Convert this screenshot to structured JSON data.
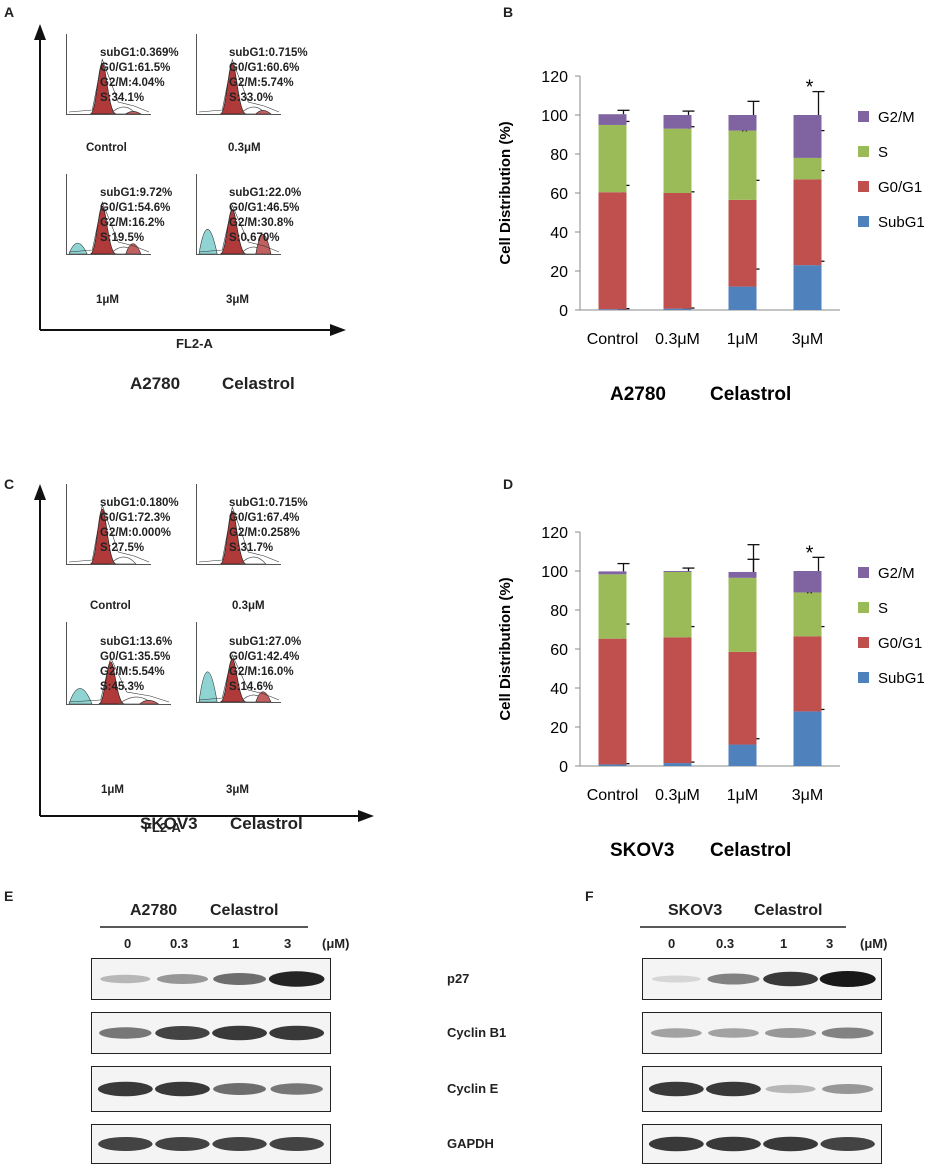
{
  "panels": {
    "a": "A",
    "b": "B",
    "c": "C",
    "d": "D",
    "e": "E",
    "f": "F"
  },
  "flow_a": {
    "xlabel": "FL2-A",
    "caption_cell": "A2780",
    "caption_drug": "Celastrol",
    "hists": [
      {
        "label": "Control",
        "lines": [
          "subG1:0.369%",
          "G0/G1:61.5%",
          "G2/M:4.04%",
          "S:34.1%"
        ]
      },
      {
        "label": "0.3μM",
        "lines": [
          "subG1:0.715%",
          "G0/G1:60.6%",
          "G2/M:5.74%",
          "S:33.0%"
        ]
      },
      {
        "label": "1μM",
        "lines": [
          "subG1:9.72%",
          "G0/G1:54.6%",
          "G2/M:16.2%",
          "S:19.5%"
        ]
      },
      {
        "label": "3μM",
        "lines": [
          "subG1:22.0%",
          "G0/G1:46.5%",
          "G2/M:30.8%",
          "S:0.670%"
        ]
      }
    ]
  },
  "flow_c": {
    "xlabel": "FL2-A",
    "caption_cell": "SKOV3",
    "caption_drug": "Celastrol",
    "hists": [
      {
        "label": "Control",
        "lines": [
          "subG1:0.180%",
          "G0/G1:72.3%",
          "G2/M:0.000%",
          "S:27.5%"
        ]
      },
      {
        "label": "0.3μM",
        "lines": [
          "subG1:0.715%",
          "G0/G1:67.4%",
          "G2/M:0.258%",
          "S:31.7%"
        ]
      },
      {
        "label": "1μM",
        "lines": [
          "subG1:13.6%",
          "G0/G1:35.5%",
          "G2/M:5.54%",
          "S:45.3%"
        ]
      },
      {
        "label": "3μM",
        "lines": [
          "subG1:27.0%",
          "G0/G1:42.4%",
          "G2/M:16.0%",
          "S:14.6%"
        ]
      }
    ]
  },
  "chart_data": [
    {
      "type": "bar",
      "stacked": true,
      "title": "",
      "caption_cell": "A2780",
      "caption_drug": "Celastrol",
      "ylabel": "Cell Distribution (%)",
      "ylim": [
        0,
        120
      ],
      "yticks": [
        0,
        20,
        40,
        60,
        80,
        100,
        120
      ],
      "categories": [
        "Control",
        "0.3μM",
        "1μM",
        "3μM"
      ],
      "series": [
        {
          "name": "SubG1",
          "color": "#4f81bd",
          "values": [
            0.4,
            0.7,
            12,
            23
          ],
          "err": [
            0.3,
            0.3,
            9,
            2
          ],
          "sig": [
            "",
            "",
            "*",
            "*"
          ]
        },
        {
          "name": "G0/G1",
          "color": "#c0504d",
          "values": [
            60,
            59.3,
            44.5,
            44
          ],
          "err": [
            3.5,
            0.6,
            10,
            4.5
          ],
          "sig": [
            "",
            "",
            "*",
            ""
          ]
        },
        {
          "name": "S",
          "color": "#9bbb59",
          "values": [
            34.5,
            33,
            35.5,
            11
          ],
          "err": [
            1.8,
            1,
            0,
            14
          ],
          "sig": [
            "",
            "",
            "*",
            "**"
          ]
        },
        {
          "name": "G2/M",
          "color": "#8064a2",
          "values": [
            5.5,
            7,
            8,
            22
          ],
          "err": [
            2,
            2,
            7,
            12
          ],
          "sig": [
            "",
            "",
            "",
            "*"
          ]
        }
      ],
      "legend": [
        "G2/M",
        "S",
        "G0/G1",
        "SubG1"
      ],
      "legend_position": "right"
    },
    {
      "type": "bar",
      "stacked": true,
      "title": "",
      "caption_cell": "SKOV3",
      "caption_drug": "Celastrol",
      "ylabel": "Cell Distribution (%)",
      "ylim": [
        0,
        120
      ],
      "yticks": [
        0,
        20,
        40,
        60,
        80,
        100,
        120
      ],
      "categories": [
        "Control",
        "0.3μM",
        "1μM",
        "3μM"
      ],
      "series": [
        {
          "name": "SubG1",
          "color": "#4f81bd",
          "values": [
            0.8,
            1.5,
            11,
            28
          ],
          "err": [
            0.4,
            0.5,
            3,
            1
          ],
          "sig": [
            "",
            "",
            "*",
            "**"
          ]
        },
        {
          "name": "G0/G1",
          "color": "#c0504d",
          "values": [
            64.5,
            64.5,
            47.5,
            38.5
          ],
          "err": [
            7.5,
            5.5,
            0,
            5
          ],
          "sig": [
            "",
            "",
            "",
            ""
          ]
        },
        {
          "name": "S",
          "color": "#9bbb59",
          "values": [
            33,
            33.5,
            38,
            22.5
          ],
          "err": [
            0,
            0,
            17,
            0
          ],
          "sig": [
            "",
            "",
            "",
            "*"
          ]
        },
        {
          "name": "G2/M",
          "color": "#8064a2",
          "values": [
            1.5,
            0.5,
            3,
            11
          ],
          "err": [
            4,
            1.5,
            6.5,
            7
          ],
          "sig": [
            "",
            "",
            "",
            "*"
          ]
        }
      ],
      "legend": [
        "G2/M",
        "S",
        "G0/G1",
        "SubG1"
      ],
      "legend_position": "right"
    }
  ],
  "western": {
    "e_header_cell": "A2780",
    "e_header_drug": "Celastrol",
    "f_header_cell": "SKOV3",
    "f_header_drug": "Celastrol",
    "doses": [
      "0",
      "0.3",
      "1",
      "3"
    ],
    "unit": "(μM)",
    "rows": [
      "p27",
      "Cyclin B1",
      "Cyclin E",
      "GAPDH"
    ],
    "e_intensity": [
      [
        0.25,
        0.4,
        0.6,
        0.95
      ],
      [
        0.55,
        0.8,
        0.85,
        0.85
      ],
      [
        0.85,
        0.85,
        0.6,
        0.55
      ],
      [
        0.8,
        0.8,
        0.8,
        0.8
      ]
    ],
    "f_intensity": [
      [
        0.1,
        0.5,
        0.85,
        1.0
      ],
      [
        0.35,
        0.35,
        0.4,
        0.5
      ],
      [
        0.85,
        0.85,
        0.25,
        0.4
      ],
      [
        0.85,
        0.85,
        0.85,
        0.8
      ]
    ]
  }
}
